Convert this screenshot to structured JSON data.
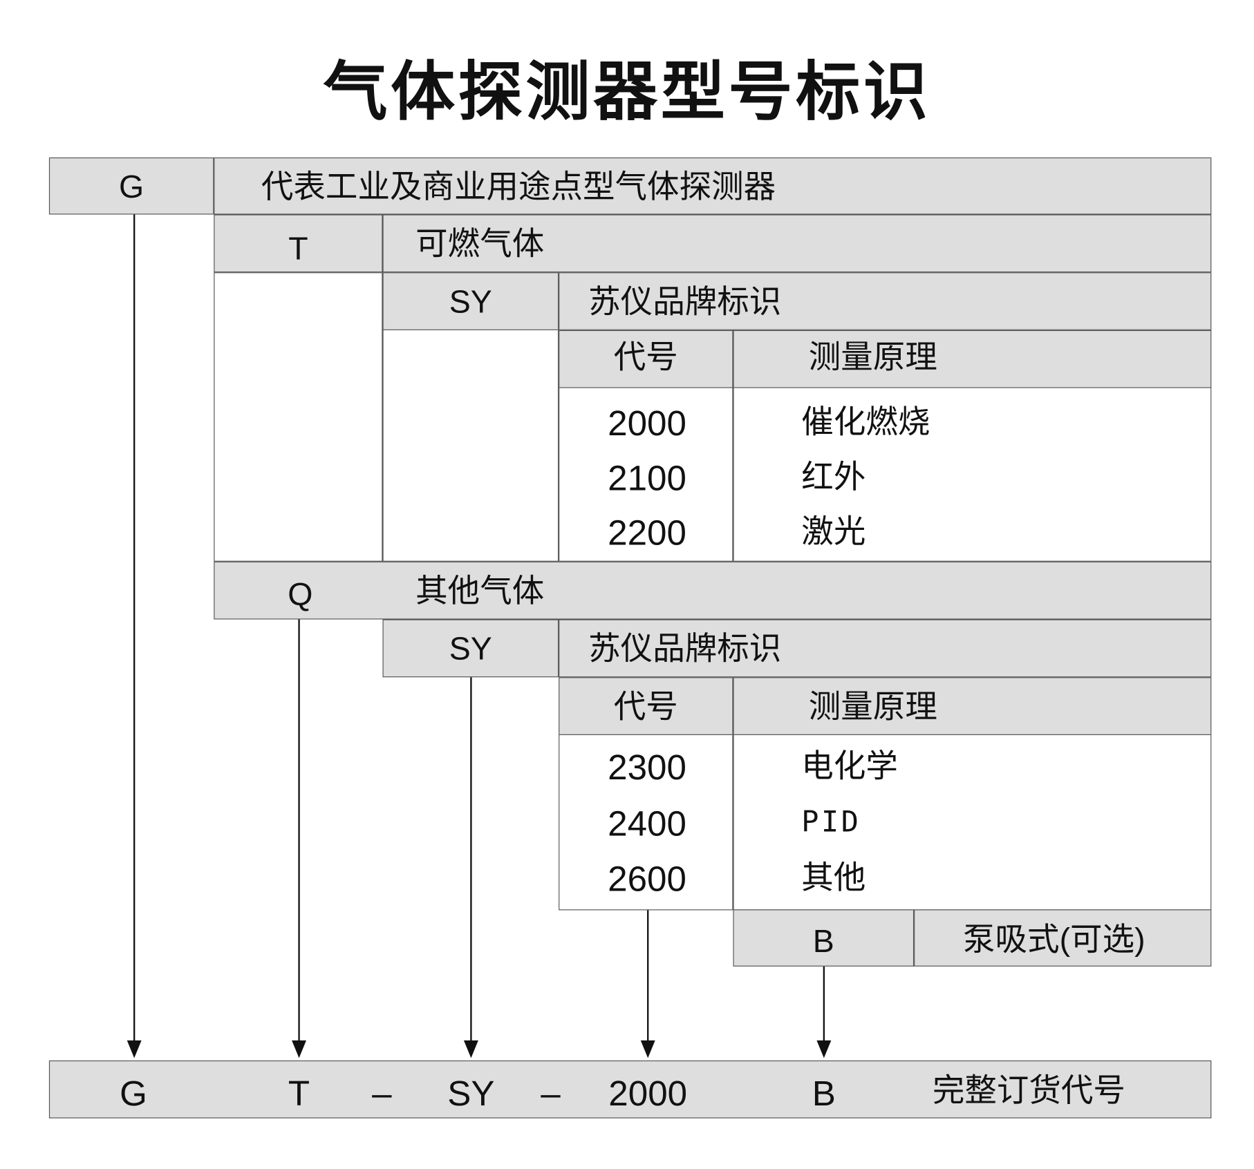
{
  "title": "气体探测器型号标识",
  "rows": {
    "g": {
      "code": "G",
      "desc": "代表工业及商业用途点型气体探测器"
    },
    "t": {
      "code": "T",
      "desc": "可燃气体"
    },
    "sy1": {
      "code": "SY",
      "desc": "苏仪品牌标识"
    },
    "hdr1": {
      "code": "代号",
      "principle": "测量原理"
    },
    "list1": [
      {
        "code": "2000",
        "principle": "催化燃烧"
      },
      {
        "code": "2100",
        "principle": "红外"
      },
      {
        "code": "2200",
        "principle": "激光"
      }
    ],
    "q": {
      "code": "Q",
      "desc": "其他气体"
    },
    "sy2": {
      "code": "SY",
      "desc": "苏仪品牌标识"
    },
    "hdr2": {
      "code": "代号",
      "principle": "测量原理"
    },
    "list2": [
      {
        "code": "2300",
        "principle": "电化学"
      },
      {
        "code": "2400",
        "principle": "PID"
      },
      {
        "code": "2600",
        "principle": "其他"
      }
    ],
    "b": {
      "code": "B",
      "desc": "泵吸式(可选)"
    }
  },
  "result": {
    "parts": [
      "G",
      "T",
      "–",
      "SY",
      "–",
      "2000",
      "B"
    ],
    "label": "完整订货代号"
  },
  "colors": {
    "cell_fill": "#dedede",
    "line": "#111111"
  }
}
